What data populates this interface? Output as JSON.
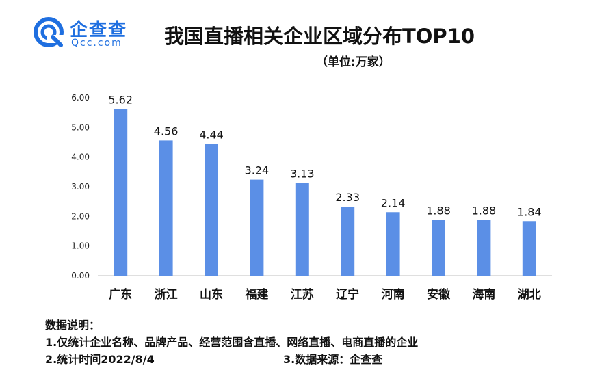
{
  "header": {
    "brand_cn": "企查查",
    "brand_en": "Qcc.com",
    "title": "我国直播相关企业区域分布TOP10",
    "subtitle": "（单位:万家）"
  },
  "notes": {
    "heading": "数据说明：",
    "line1": "1.仅统计企业名称、品牌产品、经营范围含直播、网络直播、电商直播的企业",
    "line2": "2.统计时间2022/8/4",
    "line3": "3.数据来源：企查查"
  },
  "colors": {
    "bar": "#5b8fe6",
    "brand": "#1f6fe0",
    "axis": "#bfbfbf"
  },
  "chart_data": {
    "type": "bar",
    "title": "我国直播相关企业区域分布TOP10",
    "ylabel": "（单位:万家）",
    "categories": [
      "广东",
      "浙江",
      "山东",
      "福建",
      "江苏",
      "辽宁",
      "河南",
      "安徽",
      "海南",
      "湖北"
    ],
    "values": [
      5.62,
      4.56,
      4.44,
      3.24,
      3.13,
      2.33,
      2.14,
      1.88,
      1.88,
      1.84
    ],
    "ylim": [
      0,
      6
    ],
    "yticks": [
      "0.00",
      "1.00",
      "2.00",
      "3.00",
      "4.00",
      "5.00",
      "6.00"
    ],
    "grid": false,
    "legend": "none"
  }
}
